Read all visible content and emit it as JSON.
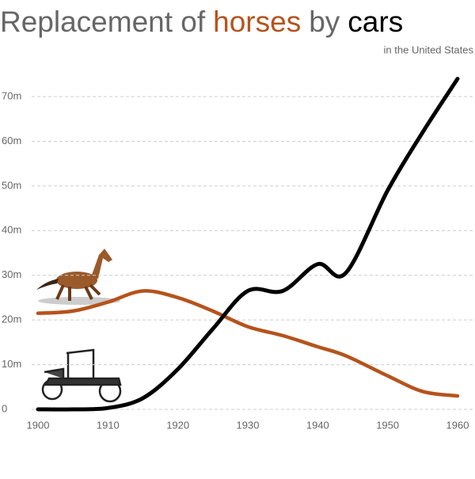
{
  "chart_data": {
    "type": "line",
    "title": [
      "Replacement of",
      "horses",
      "by",
      "cars"
    ],
    "subtitle": "in the United States",
    "x": [
      1900,
      1905,
      1910,
      1915,
      1920,
      1925,
      1930,
      1935,
      1940,
      1944,
      1950,
      1955,
      1960
    ],
    "series": [
      {
        "name": "horses",
        "color": "#b5531c",
        "values": [
          21.5,
          22,
          24,
          26.5,
          25,
          22,
          18.5,
          16.5,
          14,
          12,
          7.5,
          4,
          3
        ]
      },
      {
        "name": "cars",
        "color": "#000000",
        "values": [
          0,
          0,
          0.3,
          2.5,
          9,
          18,
          26.5,
          26.5,
          32.5,
          30.5,
          49,
          62,
          74
        ]
      }
    ],
    "xlim": [
      1900,
      1960
    ],
    "xticks": [
      1900,
      1910,
      1920,
      1930,
      1940,
      1950,
      1960
    ],
    "ylim": [
      0,
      75
    ],
    "yticks": [
      0,
      {
        "value": 10,
        "label": "10m"
      },
      {
        "value": 20,
        "label": "20m"
      },
      {
        "value": 30,
        "label": "30m"
      },
      {
        "value": 40,
        "label": "40m"
      },
      {
        "value": 50,
        "label": "50m"
      },
      {
        "value": 60,
        "label": "60m"
      },
      {
        "value": 70,
        "label": "70m"
      }
    ],
    "grid": true
  }
}
